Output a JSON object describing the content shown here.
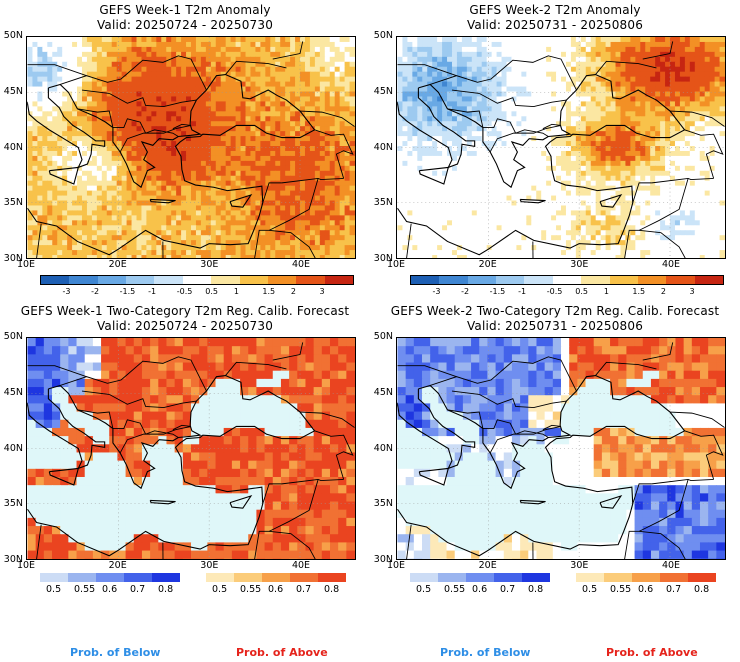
{
  "panels": [
    {
      "line1": "GEFS Week-1 T2m Anomaly",
      "line2": "Valid: 20250724 - 20250730"
    },
    {
      "line1": "GEFS Week-2 T2m Anomaly",
      "line2": "Valid: 20250731 - 20250806"
    },
    {
      "line1": "GEFS Week-1 Two-Category T2m Reg. Calib. Forecast",
      "line2": "Valid: 20250724 - 20250730"
    },
    {
      "line1": "GEFS Week-2 Two-Category T2m Reg. Calib. Forecast",
      "line2": "Valid: 20250731 - 20250806"
    }
  ],
  "lat_labels": [
    "50N",
    "45N",
    "40N",
    "35N",
    "30N"
  ],
  "lon_labels": [
    "10E",
    "20E",
    "30E",
    "40E"
  ],
  "anomaly_colorbar": {
    "labels": [
      "-3",
      "-2",
      "-1.5",
      "-1",
      "-0.5",
      "0.5",
      "1",
      "1.5",
      "2",
      "3"
    ],
    "colors": [
      "#1d5fb4",
      "#3f86d2",
      "#69a9e5",
      "#9dcaf0",
      "#cbe4f8",
      "#ffffff",
      "#fbe7a2",
      "#f8c24a",
      "#f39025",
      "#e55418",
      "#c62512"
    ]
  },
  "prob_below": {
    "labels": [
      "0.5",
      "0.55",
      "0.6",
      "0.7",
      "0.8"
    ],
    "colors": [
      "#ccdcf5",
      "#9bb5ef",
      "#6f8ef0",
      "#4362ea",
      "#1e36e0"
    ],
    "caption": "Prob. of Below",
    "caption_color": "#2e8ee6"
  },
  "prob_above": {
    "labels": [
      "0.5",
      "0.55",
      "0.6",
      "0.7",
      "0.8"
    ],
    "colors": [
      "#fde9b8",
      "#fbcc7a",
      "#f7a049",
      "#f17133",
      "#ea4420"
    ],
    "caption": "Prob. of Above",
    "caption_color": "#e5231b"
  },
  "colors": {
    "sea_fill": "#dff7f9",
    "neutral": "#ffffff"
  }
}
